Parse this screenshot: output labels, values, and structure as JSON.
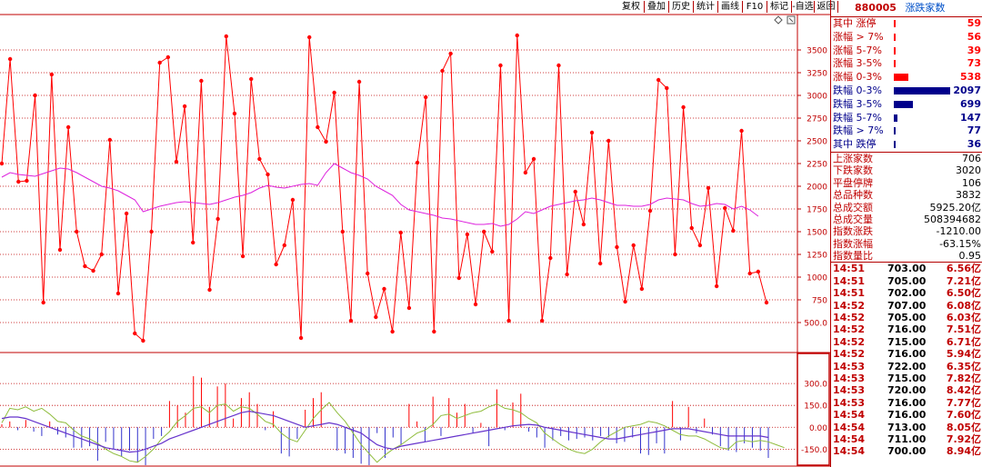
{
  "toolbar": {
    "buttons": [
      "复权",
      "叠加",
      "历史",
      "统计",
      "画线",
      "F10",
      "标记",
      "-自选",
      "返回"
    ]
  },
  "colors": {
    "up": "#ff0000",
    "down": "#00008b",
    "grid": "#c00000",
    "ma_line": "#dd22dd",
    "lower_ma_fast": "#8fbc3c",
    "lower_ma_slow": "#6633cc",
    "lower_down_bar": "#3333cc",
    "panel_text_red": "#c00000"
  },
  "right_panel": {
    "code": "880005",
    "title": "涨跌家数",
    "stats": [
      {
        "label": "其中 涨停",
        "value": "59",
        "dir": "up",
        "bar": 59
      },
      {
        "label": "涨幅 > 7%",
        "value": "56",
        "dir": "up",
        "bar": 56
      },
      {
        "label": "涨幅 5-7%",
        "value": "39",
        "dir": "up",
        "bar": 39
      },
      {
        "label": "涨幅 3-5%",
        "value": "73",
        "dir": "up",
        "bar": 73
      },
      {
        "label": "涨幅 0-3%",
        "value": "538",
        "dir": "up",
        "bar": 538
      },
      {
        "label": "跌幅 0-3%",
        "value": "2097",
        "dir": "down",
        "bar": 2097
      },
      {
        "label": "跌幅 3-5%",
        "value": "699",
        "dir": "down",
        "bar": 699
      },
      {
        "label": "跌幅 5-7%",
        "value": "147",
        "dir": "down",
        "bar": 147
      },
      {
        "label": "跌幅 > 7%",
        "value": "77",
        "dir": "down",
        "bar": 77
      },
      {
        "label": "其中 跌停",
        "value": "36",
        "dir": "down",
        "bar": 36
      }
    ],
    "summary": [
      {
        "label": "上涨家数",
        "value": "706"
      },
      {
        "label": "下跌家数",
        "value": "3020"
      },
      {
        "label": "平盘停牌",
        "value": "106"
      },
      {
        "label": "总品种数",
        "value": "3832"
      },
      {
        "label": "总成交额",
        "value": "5925.20亿"
      },
      {
        "label": "总成交量",
        "value": "508394682"
      },
      {
        "label": "指数涨跌",
        "value": "-1210.00"
      },
      {
        "label": "指数涨幅",
        "value": "-63.15%"
      },
      {
        "label": "指数量比",
        "value": "0.95"
      }
    ],
    "ticks": [
      {
        "time": "14:51",
        "price": "703.00",
        "amount": "6.56亿"
      },
      {
        "time": "14:51",
        "price": "705.00",
        "amount": "7.21亿"
      },
      {
        "time": "14:51",
        "price": "702.00",
        "amount": "6.50亿"
      },
      {
        "time": "14:52",
        "price": "707.00",
        "amount": "6.08亿"
      },
      {
        "time": "14:52",
        "price": "705.00",
        "amount": "6.03亿"
      },
      {
        "time": "14:52",
        "price": "716.00",
        "amount": "7.51亿"
      },
      {
        "time": "14:52",
        "price": "715.00",
        "amount": "6.71亿"
      },
      {
        "time": "14:52",
        "price": "716.00",
        "amount": "5.94亿"
      },
      {
        "time": "14:53",
        "price": "722.00",
        "amount": "6.35亿"
      },
      {
        "time": "14:53",
        "price": "715.00",
        "amount": "7.82亿"
      },
      {
        "time": "14:53",
        "price": "720.00",
        "amount": "8.42亿"
      },
      {
        "time": "14:53",
        "price": "716.00",
        "amount": "7.77亿"
      },
      {
        "time": "14:54",
        "price": "716.00",
        "amount": "7.60亿"
      },
      {
        "time": "14:54",
        "price": "713.00",
        "amount": "8.05亿"
      },
      {
        "time": "14:54",
        "price": "711.00",
        "amount": "7.92亿"
      },
      {
        "time": "14:54",
        "price": "700.00",
        "amount": "8.94亿"
      }
    ]
  },
  "chart_data": [
    {
      "type": "line",
      "title": "",
      "ylim": [
        200,
        3850
      ],
      "yticks": [
        "3500",
        "3250",
        "3000",
        "2750",
        "2500",
        "2250",
        "2000",
        "1750",
        "1500",
        "1250",
        "1000",
        "750",
        "500.0"
      ],
      "grid": true,
      "series": [
        {
          "values": [
            2250,
            3400,
            2050,
            2060,
            3000,
            720,
            3230,
            1300,
            2650,
            1500,
            1120,
            1070,
            1250,
            2510,
            820,
            1700,
            380,
            300,
            1500,
            3360,
            3420,
            2270,
            2880,
            1380,
            3160,
            860,
            1640,
            3650,
            2800,
            1230,
            3180,
            2300,
            2130,
            1140,
            1350,
            1850,
            330,
            3640,
            2650,
            2490,
            3030,
            1500,
            520,
            3150,
            1040,
            560,
            870,
            400,
            1490,
            660,
            2260,
            2980,
            400,
            3270,
            3460,
            990,
            1470,
            700,
            1500,
            1280,
            3330,
            520,
            3660,
            2150,
            2300,
            520,
            1210,
            3330,
            1030,
            1940,
            1580,
            2590,
            1150,
            2500,
            1330,
            730,
            1350,
            870,
            1730,
            3170,
            3080,
            1250,
            2870,
            1540,
            1350,
            1980,
            900,
            1760,
            1510,
            2610,
            1040,
            1060,
            720
          ]
        },
        {
          "values": [
            2100,
            2150,
            2130,
            2120,
            2110,
            2140,
            2170,
            2200,
            2190,
            2150,
            2100,
            2050,
            2000,
            1980,
            1950,
            1900,
            1850,
            1720,
            1750,
            1780,
            1800,
            1820,
            1830,
            1820,
            1810,
            1800,
            1820,
            1850,
            1880,
            1900,
            1930,
            1980,
            2010,
            1990,
            1980,
            2000,
            2020,
            2030,
            2010,
            2150,
            2250,
            2200,
            2150,
            2120,
            2080,
            2000,
            1950,
            1900,
            1800,
            1740,
            1720,
            1700,
            1680,
            1650,
            1640,
            1620,
            1600,
            1580,
            1580,
            1590,
            1560,
            1580,
            1640,
            1720,
            1700,
            1740,
            1780,
            1800,
            1820,
            1840,
            1850,
            1870,
            1850,
            1820,
            1790,
            1790,
            1780,
            1780,
            1800,
            1850,
            1870,
            1860,
            1850,
            1810,
            1780,
            1790,
            1810,
            1800,
            1750,
            1780,
            1740,
            1670
          ]
        }
      ]
    },
    {
      "type": "bar",
      "title": "",
      "ylim": [
        -260,
        500
      ],
      "yticks": [
        "300.0",
        "150.0",
        "0.00",
        "-150.0"
      ],
      "series": [
        {
          "values": [
            20,
            40,
            -20,
            50,
            -30,
            -60,
            40,
            -50,
            -70,
            -140,
            -140,
            -130,
            -230,
            -100,
            -150,
            -200,
            -160,
            -240,
            -260,
            -80,
            -60,
            180,
            150,
            100,
            350,
            340,
            140,
            280,
            300,
            60,
            200,
            240,
            160,
            -20,
            110,
            -180,
            -200,
            -80,
            120,
            200,
            240,
            0,
            -160,
            -180,
            -210,
            -250,
            -260,
            -40,
            -210,
            -70,
            -120,
            160,
            40,
            -100,
            210,
            -60,
            200,
            100,
            160,
            -40,
            30,
            -130,
            260,
            -20,
            170,
            230,
            -30,
            -70,
            -140,
            -90,
            -60,
            -90,
            -80,
            -70,
            -90,
            -60,
            -70,
            -110,
            -100,
            -70,
            -180,
            -190,
            -110,
            -180,
            180,
            -90,
            140,
            -40,
            60,
            -50,
            -130,
            -160,
            -170,
            -110,
            -140,
            -160,
            -210
          ]
        },
        {
          "values": [
            30,
            130,
            120,
            140,
            110,
            130,
            90,
            40,
            30,
            -20,
            -60,
            -80,
            -110,
            -150,
            -180,
            -200,
            -230,
            -240,
            -200,
            -150,
            -80,
            -30,
            40,
            80,
            130,
            140,
            100,
            150,
            160,
            110,
            140,
            130,
            90,
            40,
            20,
            -40,
            -80,
            -100,
            -20,
            60,
            120,
            170,
            100,
            40,
            -40,
            -120,
            -180,
            -240,
            -190,
            -150,
            -120,
            -80,
            -40,
            -20,
            20,
            80,
            90,
            60,
            80,
            100,
            110,
            140,
            160,
            130,
            120,
            100,
            60,
            30,
            -40,
            -80,
            -120,
            -150,
            -170,
            -180,
            -150,
            -100,
            -60,
            -30,
            0,
            10,
            20,
            40,
            30,
            10,
            -20,
            -50,
            -60,
            -60,
            -80,
            -110,
            -140,
            -150,
            -100,
            -90,
            -100,
            -90,
            -100,
            -120,
            -140
          ]
        },
        {
          "values": [
            60,
            70,
            70,
            60,
            40,
            20,
            0,
            -20,
            -40,
            -60,
            -80,
            -100,
            -120,
            -140,
            -150,
            -160,
            -170,
            -165,
            -150,
            -130,
            -110,
            -80,
            -60,
            -40,
            -20,
            0,
            20,
            40,
            60,
            80,
            100,
            110,
            100,
            90,
            80,
            60,
            40,
            20,
            0,
            10,
            20,
            30,
            20,
            0,
            -20,
            -40,
            -80,
            -120,
            -140,
            -150,
            -130,
            -120,
            -110,
            -100,
            -90,
            -80,
            -70,
            -60,
            -50,
            -40,
            -30,
            -20,
            -10,
            0,
            10,
            15,
            20,
            15,
            0,
            -10,
            -20,
            -30,
            -40,
            -50,
            -60,
            -70,
            -80,
            -80,
            -70,
            -60,
            -50,
            -40,
            -30,
            -20,
            -10,
            -10,
            -10,
            -20,
            -30,
            -40,
            -50,
            -60,
            -60,
            -60,
            -60,
            -60,
            -70
          ]
        }
      ]
    }
  ]
}
